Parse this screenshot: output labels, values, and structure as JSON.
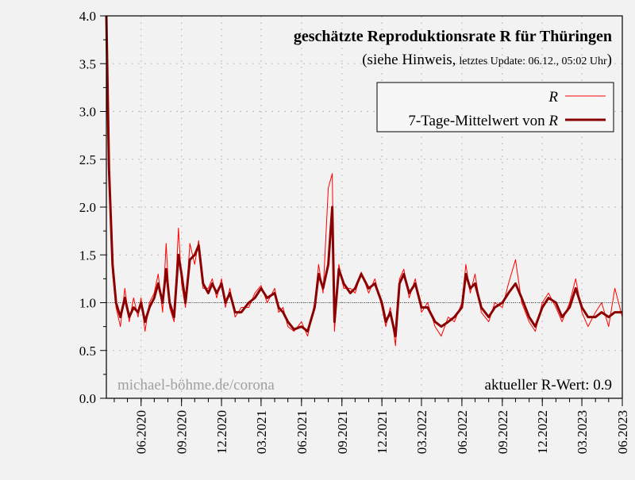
{
  "chart_data": {
    "type": "line",
    "title": "geschätzte Reproduktionsrate R für Thüringen",
    "subtitle_main": "(siehe Hinweis,",
    "subtitle_small": "letztes Update: 06.12., 05:02 Uhr",
    "subtitle_close": ")",
    "watermark": "michael-böhme.de/corona",
    "current_value_label": "aktueller R-Wert: 0.9",
    "xlabel": "",
    "ylabel": "",
    "xlim": [
      "2020-03-14",
      "2023-06-01"
    ],
    "ylim": [
      0,
      4.0
    ],
    "yticks": [
      0.0,
      0.5,
      1.0,
      1.5,
      2.0,
      2.5,
      3.0,
      3.5,
      4.0
    ],
    "ytick_labels": [
      "0.0",
      "0.5",
      "1.0",
      "1.5",
      "2.0",
      "2.5",
      "3.0",
      "3.5",
      "4.0"
    ],
    "xticks": [
      "2020-06-01",
      "2020-09-01",
      "2020-12-01",
      "2021-03-01",
      "2021-06-01",
      "2021-09-01",
      "2021-12-01",
      "2022-03-01",
      "2022-06-01",
      "2022-09-01",
      "2022-12-01",
      "2023-03-01",
      "2023-06-01"
    ],
    "xtick_labels": [
      "06.2020",
      "09.2020",
      "12.2020",
      "03.2021",
      "06.2021",
      "09.2021",
      "12.2021",
      "03.2022",
      "06.2022",
      "09.2022",
      "12.2022",
      "03.2023",
      "06.2023"
    ],
    "reference_line": 1.0,
    "grid": true,
    "legend_position": "top-right",
    "series": [
      {
        "name": "R",
        "color": "#ff0000",
        "points": [
          [
            "2020-03-14",
            4.0
          ],
          [
            "2020-03-20",
            2.6
          ],
          [
            "2020-03-28",
            1.3
          ],
          [
            "2020-04-05",
            0.95
          ],
          [
            "2020-04-15",
            0.75
          ],
          [
            "2020-04-25",
            1.15
          ],
          [
            "2020-05-05",
            0.8
          ],
          [
            "2020-05-15",
            1.05
          ],
          [
            "2020-05-25",
            0.85
          ],
          [
            "2020-06-01",
            1.05
          ],
          [
            "2020-06-10",
            0.7
          ],
          [
            "2020-06-20",
            1.0
          ],
          [
            "2020-07-01",
            1.1
          ],
          [
            "2020-07-10",
            1.3
          ],
          [
            "2020-07-20",
            0.9
          ],
          [
            "2020-07-28",
            1.62
          ],
          [
            "2020-08-05",
            0.95
          ],
          [
            "2020-08-15",
            0.8
          ],
          [
            "2020-08-25",
            1.78
          ],
          [
            "2020-09-01",
            1.2
          ],
          [
            "2020-09-10",
            0.95
          ],
          [
            "2020-09-20",
            1.62
          ],
          [
            "2020-10-01",
            1.4
          ],
          [
            "2020-10-10",
            1.65
          ],
          [
            "2020-10-20",
            1.15
          ],
          [
            "2020-11-01",
            1.15
          ],
          [
            "2020-11-10",
            1.25
          ],
          [
            "2020-11-20",
            1.05
          ],
          [
            "2020-12-01",
            1.25
          ],
          [
            "2020-12-10",
            0.95
          ],
          [
            "2020-12-20",
            1.15
          ],
          [
            "2021-01-01",
            0.85
          ],
          [
            "2021-01-15",
            0.95
          ],
          [
            "2021-02-01",
            0.95
          ],
          [
            "2021-02-15",
            1.1
          ],
          [
            "2021-03-01",
            1.18
          ],
          [
            "2021-03-15",
            1.0
          ],
          [
            "2021-04-01",
            1.15
          ],
          [
            "2021-04-10",
            0.9
          ],
          [
            "2021-04-20",
            0.95
          ],
          [
            "2021-05-01",
            0.75
          ],
          [
            "2021-05-15",
            0.7
          ],
          [
            "2021-06-01",
            0.8
          ],
          [
            "2021-06-15",
            0.65
          ],
          [
            "2021-07-01",
            1.0
          ],
          [
            "2021-07-10",
            1.4
          ],
          [
            "2021-07-20",
            1.1
          ],
          [
            "2021-08-01",
            2.2
          ],
          [
            "2021-08-10",
            2.35
          ],
          [
            "2021-08-15",
            0.7
          ],
          [
            "2021-08-25",
            1.4
          ],
          [
            "2021-09-05",
            1.15
          ],
          [
            "2021-09-20",
            1.15
          ],
          [
            "2021-10-01",
            1.1
          ],
          [
            "2021-10-15",
            1.32
          ],
          [
            "2021-11-01",
            1.1
          ],
          [
            "2021-11-15",
            1.25
          ],
          [
            "2021-12-01",
            0.95
          ],
          [
            "2021-12-10",
            0.75
          ],
          [
            "2021-12-20",
            0.95
          ],
          [
            "2022-01-01",
            0.55
          ],
          [
            "2022-01-10",
            1.25
          ],
          [
            "2022-01-20",
            1.35
          ],
          [
            "2022-02-01",
            1.05
          ],
          [
            "2022-02-15",
            1.25
          ],
          [
            "2022-03-01",
            0.9
          ],
          [
            "2022-03-15",
            1.0
          ],
          [
            "2022-04-01",
            0.75
          ],
          [
            "2022-04-15",
            0.65
          ],
          [
            "2022-05-01",
            0.85
          ],
          [
            "2022-05-15",
            0.8
          ],
          [
            "2022-06-01",
            1.0
          ],
          [
            "2022-06-10",
            1.4
          ],
          [
            "2022-06-20",
            1.1
          ],
          [
            "2022-07-01",
            1.3
          ],
          [
            "2022-07-15",
            0.9
          ],
          [
            "2022-08-01",
            0.8
          ],
          [
            "2022-08-15",
            1.0
          ],
          [
            "2022-09-01",
            0.95
          ],
          [
            "2022-09-15",
            1.2
          ],
          [
            "2022-10-01",
            1.45
          ],
          [
            "2022-10-15",
            1.0
          ],
          [
            "2022-11-01",
            0.8
          ],
          [
            "2022-11-15",
            0.7
          ],
          [
            "2022-12-01",
            1.0
          ],
          [
            "2022-12-15",
            1.1
          ],
          [
            "2023-01-01",
            0.95
          ],
          [
            "2023-01-15",
            0.8
          ],
          [
            "2023-02-01",
            1.0
          ],
          [
            "2023-02-15",
            1.25
          ],
          [
            "2023-03-01",
            0.9
          ],
          [
            "2023-03-15",
            0.75
          ],
          [
            "2023-04-01",
            0.9
          ],
          [
            "2023-04-15",
            1.0
          ],
          [
            "2023-05-01",
            0.75
          ],
          [
            "2023-05-15",
            1.15
          ],
          [
            "2023-06-01",
            0.85
          ]
        ]
      },
      {
        "name": "7-Tage-Mittelwert von R",
        "color": "#8b0000",
        "points": [
          [
            "2020-03-14",
            4.0
          ],
          [
            "2020-03-20",
            2.4
          ],
          [
            "2020-03-28",
            1.4
          ],
          [
            "2020-04-05",
            1.0
          ],
          [
            "2020-04-15",
            0.85
          ],
          [
            "2020-04-25",
            1.05
          ],
          [
            "2020-05-05",
            0.85
          ],
          [
            "2020-05-15",
            0.95
          ],
          [
            "2020-05-25",
            0.9
          ],
          [
            "2020-06-01",
            1.0
          ],
          [
            "2020-06-10",
            0.8
          ],
          [
            "2020-06-20",
            0.95
          ],
          [
            "2020-07-01",
            1.05
          ],
          [
            "2020-07-10",
            1.2
          ],
          [
            "2020-07-20",
            1.0
          ],
          [
            "2020-07-28",
            1.35
          ],
          [
            "2020-08-05",
            1.0
          ],
          [
            "2020-08-15",
            0.85
          ],
          [
            "2020-08-25",
            1.5
          ],
          [
            "2020-09-01",
            1.3
          ],
          [
            "2020-09-10",
            1.0
          ],
          [
            "2020-09-20",
            1.45
          ],
          [
            "2020-10-01",
            1.5
          ],
          [
            "2020-10-10",
            1.6
          ],
          [
            "2020-10-20",
            1.2
          ],
          [
            "2020-11-01",
            1.1
          ],
          [
            "2020-11-10",
            1.2
          ],
          [
            "2020-11-20",
            1.1
          ],
          [
            "2020-12-01",
            1.2
          ],
          [
            "2020-12-10",
            1.0
          ],
          [
            "2020-12-20",
            1.1
          ],
          [
            "2021-01-01",
            0.9
          ],
          [
            "2021-01-15",
            0.9
          ],
          [
            "2021-02-01",
            1.0
          ],
          [
            "2021-02-15",
            1.05
          ],
          [
            "2021-03-01",
            1.15
          ],
          [
            "2021-03-15",
            1.05
          ],
          [
            "2021-04-01",
            1.1
          ],
          [
            "2021-04-10",
            0.95
          ],
          [
            "2021-04-20",
            0.9
          ],
          [
            "2021-05-01",
            0.8
          ],
          [
            "2021-05-15",
            0.72
          ],
          [
            "2021-06-01",
            0.75
          ],
          [
            "2021-06-15",
            0.7
          ],
          [
            "2021-07-01",
            0.95
          ],
          [
            "2021-07-10",
            1.3
          ],
          [
            "2021-07-20",
            1.15
          ],
          [
            "2021-08-01",
            1.4
          ],
          [
            "2021-08-10",
            2.0
          ],
          [
            "2021-08-15",
            0.8
          ],
          [
            "2021-08-25",
            1.35
          ],
          [
            "2021-09-05",
            1.2
          ],
          [
            "2021-09-20",
            1.1
          ],
          [
            "2021-10-01",
            1.15
          ],
          [
            "2021-10-15",
            1.3
          ],
          [
            "2021-11-01",
            1.15
          ],
          [
            "2021-11-15",
            1.2
          ],
          [
            "2021-12-01",
            1.0
          ],
          [
            "2021-12-10",
            0.8
          ],
          [
            "2021-12-20",
            0.9
          ],
          [
            "2022-01-01",
            0.65
          ],
          [
            "2022-01-10",
            1.2
          ],
          [
            "2022-01-20",
            1.3
          ],
          [
            "2022-02-01",
            1.1
          ],
          [
            "2022-02-15",
            1.2
          ],
          [
            "2022-03-01",
            0.95
          ],
          [
            "2022-03-15",
            0.95
          ],
          [
            "2022-04-01",
            0.8
          ],
          [
            "2022-04-15",
            0.75
          ],
          [
            "2022-05-01",
            0.8
          ],
          [
            "2022-05-15",
            0.85
          ],
          [
            "2022-06-01",
            0.95
          ],
          [
            "2022-06-10",
            1.3
          ],
          [
            "2022-06-20",
            1.15
          ],
          [
            "2022-07-01",
            1.2
          ],
          [
            "2022-07-15",
            0.95
          ],
          [
            "2022-08-01",
            0.85
          ],
          [
            "2022-08-15",
            0.95
          ],
          [
            "2022-09-01",
            1.0
          ],
          [
            "2022-09-15",
            1.1
          ],
          [
            "2022-10-01",
            1.2
          ],
          [
            "2022-10-15",
            1.05
          ],
          [
            "2022-11-01",
            0.85
          ],
          [
            "2022-11-15",
            0.75
          ],
          [
            "2022-12-01",
            0.95
          ],
          [
            "2022-12-15",
            1.05
          ],
          [
            "2023-01-01",
            1.0
          ],
          [
            "2023-01-15",
            0.85
          ],
          [
            "2023-02-01",
            0.95
          ],
          [
            "2023-02-15",
            1.15
          ],
          [
            "2023-03-01",
            0.95
          ],
          [
            "2023-03-15",
            0.85
          ],
          [
            "2023-04-01",
            0.85
          ],
          [
            "2023-04-15",
            0.9
          ],
          [
            "2023-05-01",
            0.85
          ],
          [
            "2023-05-15",
            0.9
          ],
          [
            "2023-06-01",
            0.9
          ]
        ]
      }
    ],
    "legend": [
      {
        "label_text": "",
        "label_var": "R"
      },
      {
        "label_text": "7-Tage-Mittelwert von ",
        "label_var": "R"
      }
    ]
  }
}
